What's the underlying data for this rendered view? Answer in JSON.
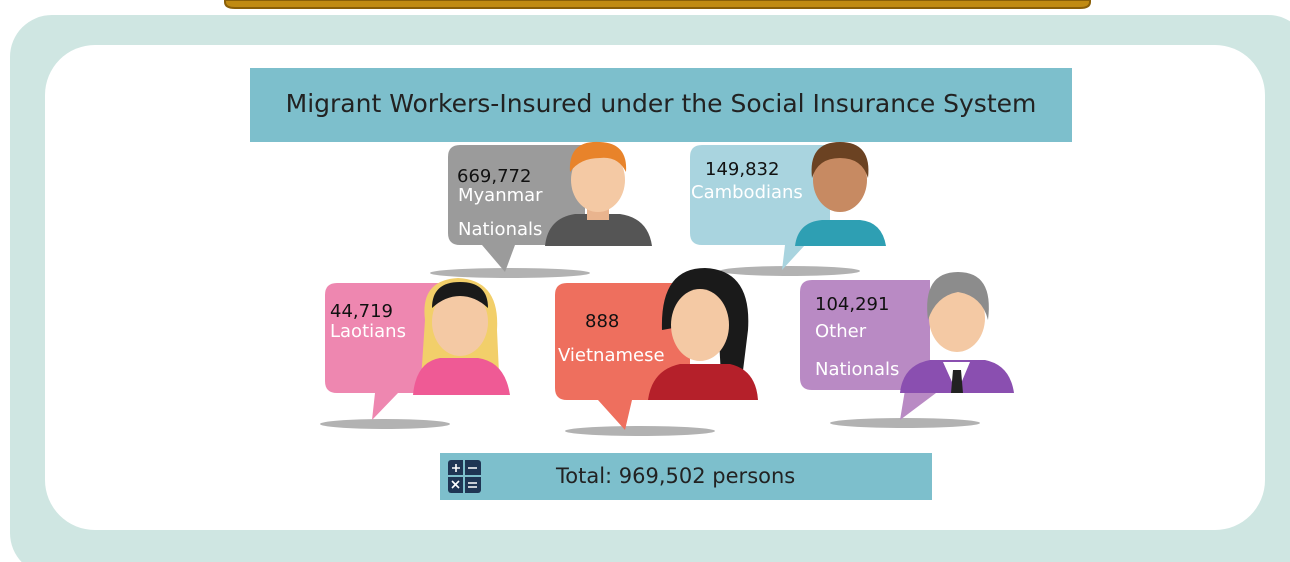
{
  "title": "Migrant Workers-Insured under the Social Insurance  System",
  "groups": [
    {
      "count": "669,772",
      "label": [
        "Myanmar",
        "Nationals"
      ]
    },
    {
      "count": "149,832",
      "label": [
        "Cambodians"
      ]
    },
    {
      "count": "44,719",
      "label": [
        "Laotians"
      ]
    },
    {
      "count": "888",
      "label": [
        "Vietnamese"
      ]
    },
    {
      "count": "104,291",
      "label": [
        "Other",
        "Nationals"
      ]
    }
  ],
  "total": "Total: 969,502 persons"
}
